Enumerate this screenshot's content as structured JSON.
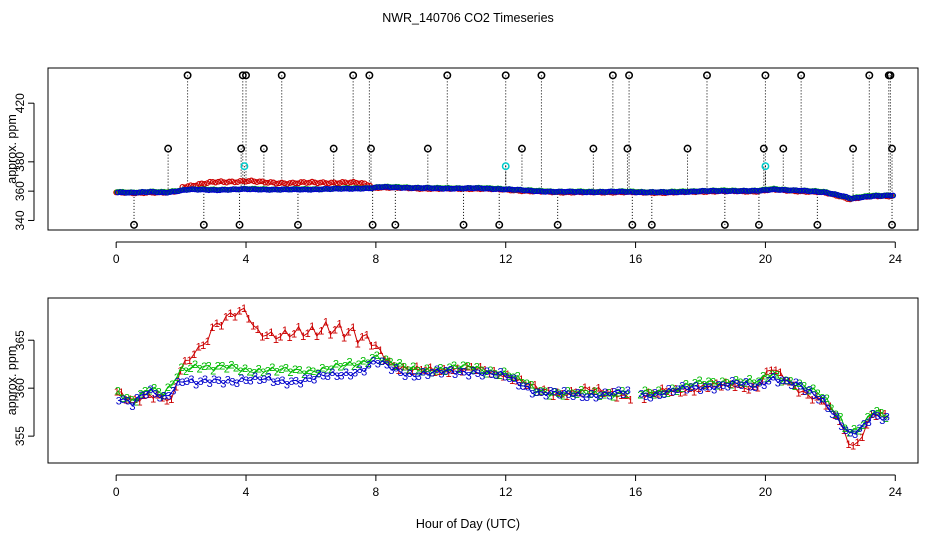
{
  "figure": {
    "title": "NWR_140706  CO2 Timeseries",
    "xlabel": "Hour of Day (UTC)"
  },
  "colors": {
    "series1": "#cc0000",
    "series2": "#00bb00",
    "series3": "#0000cc",
    "flag_black": "#000000",
    "flag_cyan": "#00cccc"
  },
  "chart_data": [
    {
      "type": "scatter",
      "panel": "top",
      "ylabel": "approx. ppm",
      "xlim": [
        -2.1,
        24.7
      ],
      "ylim": [
        333.5,
        444
      ],
      "x_ticks": [
        0,
        4,
        8,
        12,
        16,
        20,
        24
      ],
      "y_ticks": [
        340,
        360,
        380,
        420
      ],
      "baseline": [
        [
          0,
          359.5
        ],
        [
          0.5,
          359.2
        ],
        [
          1.0,
          359.6
        ],
        [
          1.5,
          359.3
        ],
        [
          1.9,
          360.5
        ],
        [
          2.2,
          361.3
        ],
        [
          3.0,
          361.0
        ],
        [
          4.0,
          361.5
        ],
        [
          5.0,
          361.2
        ],
        [
          6.0,
          361.4
        ],
        [
          7.0,
          361.8
        ],
        [
          7.8,
          362.2
        ],
        [
          8.1,
          363.0
        ],
        [
          9.0,
          362.5
        ],
        [
          10.0,
          362.0
        ],
        [
          11.0,
          362.2
        ],
        [
          12.0,
          361.5
        ],
        [
          12.8,
          360.3
        ],
        [
          13.5,
          359.8
        ],
        [
          14.5,
          359.6
        ],
        [
          15.5,
          359.8
        ],
        [
          16.2,
          359.5
        ],
        [
          17.0,
          359.4
        ],
        [
          18.0,
          360.2
        ],
        [
          19.0,
          360.4
        ],
        [
          19.7,
          360.3
        ],
        [
          20.2,
          361.5
        ],
        [
          21.0,
          360.5
        ],
        [
          21.8,
          359.5
        ],
        [
          22.3,
          357.0
        ],
        [
          22.6,
          355.0
        ],
        [
          22.9,
          356.0
        ],
        [
          23.3,
          357.0
        ],
        [
          23.8,
          357.2
        ]
      ],
      "red_excursion": [
        [
          2.0,
          363
        ],
        [
          3.0,
          366
        ],
        [
          4.0,
          367
        ],
        [
          4.5,
          366
        ],
        [
          5.5,
          365.5
        ],
        [
          6.5,
          366
        ],
        [
          7.5,
          365.5
        ],
        [
          7.9,
          364
        ]
      ],
      "flags_high": [
        2.2,
        3.9,
        4.0,
        5.1,
        7.3,
        7.8,
        10.2,
        12.0,
        13.1,
        15.3,
        15.8,
        18.2,
        20.0,
        21.1,
        23.2,
        23.8,
        23.85
      ],
      "flags_mid": [
        1.6,
        3.85,
        4.55,
        6.7,
        7.85,
        9.6,
        12.5,
        14.7,
        15.75,
        17.6,
        19.95,
        20.55,
        22.7,
        23.9
      ],
      "flags_low": [
        0.55,
        2.7,
        3.8,
        5.6,
        7.9,
        8.6,
        10.7,
        11.8,
        13.6,
        15.9,
        16.5,
        18.75,
        19.8,
        21.6,
        23.9
      ],
      "flags_cyan": [
        [
          3.95,
          377
        ],
        [
          12.0,
          377
        ],
        [
          20.0,
          377
        ]
      ],
      "flag_levels": {
        "high": 439,
        "mid": 389,
        "low": 337
      }
    },
    {
      "type": "line_scatter",
      "panel": "bottom",
      "ylabel": "approx. ppm",
      "xlim": [
        -2.1,
        24.7
      ],
      "ylim": [
        352.2,
        369.4
      ],
      "x_ticks": [
        0,
        4,
        8,
        12,
        16,
        20,
        24
      ],
      "y_ticks": [
        355,
        360,
        365
      ],
      "gap": [
        15.85,
        16.15
      ],
      "series": [
        {
          "name": "1",
          "symbol": "1",
          "values": [
            [
              0,
              359.5
            ],
            [
              0.5,
              358.6
            ],
            [
              1.0,
              359.5
            ],
            [
              1.5,
              359.0
            ],
            [
              1.7,
              358.5
            ],
            [
              2.0,
              362.0
            ],
            [
              2.5,
              364.0
            ],
            [
              3.0,
              366.5
            ],
            [
              3.5,
              367.5
            ],
            [
              4.0,
              368.0
            ],
            [
              4.3,
              366.0
            ],
            [
              5.0,
              365.5
            ],
            [
              6.0,
              365.8
            ],
            [
              6.5,
              366.5
            ],
            [
              7.0,
              366.0
            ],
            [
              7.5,
              365.2
            ],
            [
              8.0,
              364.5
            ],
            [
              8.5,
              362.5
            ],
            [
              9.0,
              361.8
            ],
            [
              10.0,
              362.0
            ],
            [
              11.0,
              362.0
            ],
            [
              12.0,
              361.5
            ],
            [
              13.0,
              359.8
            ],
            [
              13.5,
              359.5
            ],
            [
              14.5,
              359.8
            ],
            [
              15.5,
              359.4
            ],
            [
              16.2,
              359.0
            ],
            [
              17.0,
              359.8
            ],
            [
              18.0,
              360.0
            ],
            [
              19.0,
              360.5
            ],
            [
              19.7,
              360.0
            ],
            [
              20.2,
              362.0
            ],
            [
              21.0,
              360.0
            ],
            [
              21.8,
              358.5
            ],
            [
              22.3,
              356.5
            ],
            [
              22.5,
              354.5
            ],
            [
              22.8,
              354.0
            ],
            [
              23.0,
              355.5
            ],
            [
              23.3,
              357.5
            ],
            [
              23.8,
              357.0
            ]
          ]
        },
        {
          "name": "2",
          "symbol": "2",
          "values": [
            [
              0,
              359.6
            ],
            [
              0.5,
              358.8
            ],
            [
              1.0,
              360.0
            ],
            [
              1.5,
              359.2
            ],
            [
              2.0,
              362.0
            ],
            [
              2.5,
              362.5
            ],
            [
              3.0,
              362.0
            ],
            [
              3.5,
              362.2
            ],
            [
              4.0,
              362.0
            ],
            [
              5.0,
              361.8
            ],
            [
              6.0,
              361.9
            ],
            [
              6.5,
              362.0
            ],
            [
              7.0,
              362.3
            ],
            [
              7.5,
              362.6
            ],
            [
              8.0,
              363.5
            ],
            [
              8.5,
              362.5
            ],
            [
              9.0,
              362.0
            ],
            [
              10.0,
              362.0
            ],
            [
              11.0,
              362.2
            ],
            [
              12.0,
              361.5
            ],
            [
              13.0,
              359.8
            ],
            [
              14.0,
              359.4
            ],
            [
              15.0,
              359.5
            ],
            [
              15.8,
              359.6
            ],
            [
              16.2,
              359.4
            ],
            [
              17.0,
              359.8
            ],
            [
              18.0,
              360.5
            ],
            [
              19.0,
              360.8
            ],
            [
              19.7,
              360.5
            ],
            [
              20.2,
              361.5
            ],
            [
              21.0,
              360.5
            ],
            [
              21.8,
              359.0
            ],
            [
              22.3,
              357.0
            ],
            [
              22.6,
              355.5
            ],
            [
              23.0,
              356.0
            ],
            [
              23.3,
              357.5
            ],
            [
              23.8,
              357.0
            ]
          ]
        },
        {
          "name": "3",
          "symbol": "3",
          "values": [
            [
              0,
              359.3
            ],
            [
              0.5,
              358.4
            ],
            [
              1.0,
              359.6
            ],
            [
              1.5,
              359.0
            ],
            [
              2.0,
              361.0
            ],
            [
              2.5,
              360.5
            ],
            [
              3.0,
              360.7
            ],
            [
              4.0,
              361.0
            ],
            [
              5.0,
              360.7
            ],
            [
              6.0,
              361.0
            ],
            [
              7.0,
              361.5
            ],
            [
              7.6,
              362.0
            ],
            [
              8.0,
              362.8
            ],
            [
              8.5,
              362.0
            ],
            [
              9.0,
              361.5
            ],
            [
              10.0,
              361.6
            ],
            [
              11.0,
              361.8
            ],
            [
              12.0,
              361.2
            ],
            [
              13.0,
              359.6
            ],
            [
              14.0,
              359.3
            ],
            [
              15.0,
              359.4
            ],
            [
              15.8,
              359.5
            ],
            [
              16.2,
              359.3
            ],
            [
              17.0,
              359.6
            ],
            [
              18.0,
              360.2
            ],
            [
              19.0,
              360.4
            ],
            [
              19.7,
              360.2
            ],
            [
              20.2,
              361.2
            ],
            [
              21.0,
              360.2
            ],
            [
              21.8,
              358.8
            ],
            [
              22.3,
              356.5
            ],
            [
              22.6,
              355.0
            ],
            [
              23.0,
              355.8
            ],
            [
              23.3,
              357.2
            ],
            [
              23.8,
              357.0
            ]
          ]
        }
      ]
    }
  ]
}
